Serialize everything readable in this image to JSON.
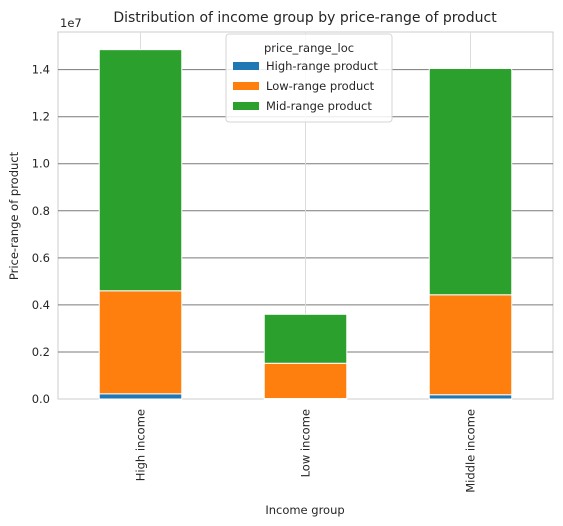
{
  "chart_data": {
    "type": "bar",
    "stacked": true,
    "title": "Distribution of income group by price-range of product",
    "xlabel": "Income group",
    "ylabel": "Price-range of product",
    "y_offset_text": "1e7",
    "categories": [
      "High income",
      "Low income",
      "Middle income"
    ],
    "series": [
      {
        "name": "High-range product",
        "color": "#1f77b4",
        "values": [
          220000,
          20000,
          180000
        ]
      },
      {
        "name": "Low-range product",
        "color": "#ff7f0e",
        "values": [
          4380000,
          1500000,
          4250000
        ]
      },
      {
        "name": "Mid-range product",
        "color": "#2ca02c",
        "values": [
          10250000,
          2080000,
          9620000
        ]
      }
    ],
    "ylim": [
      0,
      15600000
    ],
    "yticks": [
      0,
      2000000,
      4000000,
      6000000,
      8000000,
      10000000,
      12000000,
      14000000
    ],
    "ytick_labels": [
      "0.0",
      "0.2",
      "0.4",
      "0.6",
      "0.8",
      "1.0",
      "1.2",
      "1.4"
    ],
    "legend": {
      "title": "price_range_loc",
      "placement": "upper center"
    },
    "grid": true
  }
}
